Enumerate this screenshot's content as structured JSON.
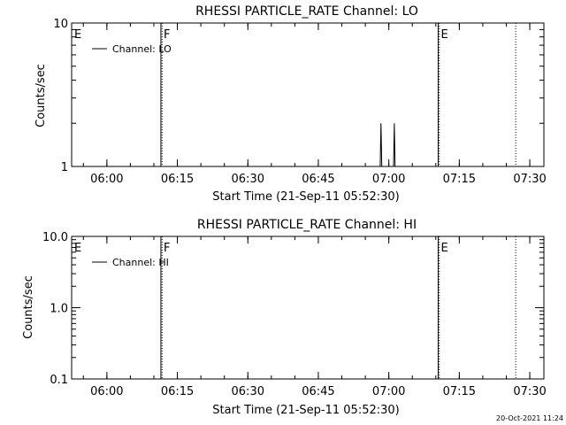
{
  "footer_timestamp": "20-Oct-2021 11:24",
  "chart_data": [
    {
      "type": "line",
      "title": "RHESSI PARTICLE_RATE Channel: LO",
      "xlabel": "Start Time (21-Sep-11 05:52:30)",
      "ylabel": "Counts/sec",
      "y_scale": "log",
      "ylim": [
        1,
        10
      ],
      "y_ticks": [
        {
          "value": 1,
          "label": "1"
        },
        {
          "value": 10,
          "label": "10"
        }
      ],
      "y_minor_ticks": [
        2,
        3,
        4,
        5,
        6,
        7,
        8,
        9
      ],
      "xlim": [
        "05:52:30",
        "07:33:00"
      ],
      "x_ticks": [
        {
          "value": "06:00",
          "label": "06:00"
        },
        {
          "value": "06:15",
          "label": "06:15"
        },
        {
          "value": "06:30",
          "label": "06:30"
        },
        {
          "value": "06:45",
          "label": "06:45"
        },
        {
          "value": "07:00",
          "label": "07:00"
        },
        {
          "value": "07:15",
          "label": "07:15"
        },
        {
          "value": "07:30",
          "label": "07:30"
        }
      ],
      "x_minor_step_minutes": 5,
      "legend": {
        "position": "top-left",
        "entries": [
          "Channel: LO"
        ]
      },
      "markers": [
        {
          "time": "05:52:30",
          "label": "E",
          "style": "solid"
        },
        {
          "time": "06:11:30",
          "label": "F",
          "style": "solid"
        },
        {
          "time": "06:11:45",
          "label": "",
          "style": "dotted"
        },
        {
          "time": "07:10:30",
          "label": "E",
          "style": "solid"
        },
        {
          "time": "07:10:45",
          "label": "",
          "style": "dotted"
        },
        {
          "time": "07:27:00",
          "label": "",
          "style": "dotted"
        }
      ],
      "series": [
        {
          "name": "Channel: LO",
          "points": [
            [
              "06:58:10",
              1
            ],
            [
              "06:58:20",
              2
            ],
            [
              "06:58:30",
              1
            ],
            [
              "07:01:00",
              1
            ],
            [
              "07:01:10",
              2
            ],
            [
              "07:01:20",
              1
            ]
          ]
        }
      ]
    },
    {
      "type": "line",
      "title": "RHESSI PARTICLE_RATE Channel: HI",
      "xlabel": "Start Time (21-Sep-11 05:52:30)",
      "ylabel": "Counts/sec",
      "y_scale": "log",
      "ylim": [
        0.1,
        10
      ],
      "y_ticks": [
        {
          "value": 0.1,
          "label": "0.1"
        },
        {
          "value": 1,
          "label": "1.0"
        },
        {
          "value": 10,
          "label": "10.0"
        }
      ],
      "y_minor_ticks": [
        0.2,
        0.3,
        0.4,
        0.5,
        0.6,
        0.7,
        0.8,
        0.9,
        2,
        3,
        4,
        5,
        6,
        7,
        8,
        9
      ],
      "xlim": [
        "05:52:30",
        "07:33:00"
      ],
      "x_ticks": [
        {
          "value": "06:00",
          "label": "06:00"
        },
        {
          "value": "06:15",
          "label": "06:15"
        },
        {
          "value": "06:30",
          "label": "06:30"
        },
        {
          "value": "06:45",
          "label": "06:45"
        },
        {
          "value": "07:00",
          "label": "07:00"
        },
        {
          "value": "07:15",
          "label": "07:15"
        },
        {
          "value": "07:30",
          "label": "07:30"
        }
      ],
      "x_minor_step_minutes": 5,
      "legend": {
        "position": "top-left",
        "entries": [
          "Channel: HI"
        ]
      },
      "markers": [
        {
          "time": "05:52:30",
          "label": "E",
          "style": "solid"
        },
        {
          "time": "06:11:30",
          "label": "F",
          "style": "solid"
        },
        {
          "time": "06:11:45",
          "label": "",
          "style": "dotted"
        },
        {
          "time": "07:10:30",
          "label": "E",
          "style": "solid"
        },
        {
          "time": "07:10:45",
          "label": "",
          "style": "dotted"
        },
        {
          "time": "07:27:00",
          "label": "",
          "style": "dotted"
        }
      ],
      "series": [
        {
          "name": "Channel: HI",
          "points": []
        }
      ]
    }
  ]
}
